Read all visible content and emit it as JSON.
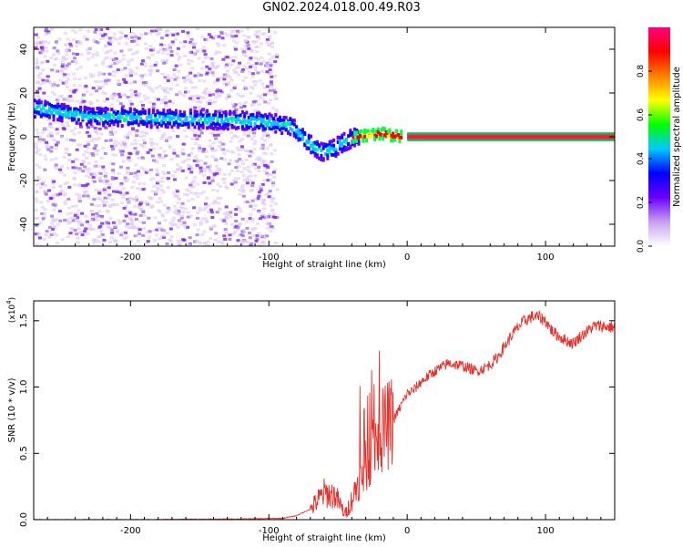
{
  "title": "GN02.2024.018.00.49.R03",
  "chart_data": [
    {
      "type": "heatmap",
      "xlabel": "Height of straight line (km)",
      "ylabel": "Frequency (Hz)",
      "xlim": [
        -270,
        150
      ],
      "ylim": [
        -50,
        50
      ],
      "xticks": [
        -200,
        -100,
        0,
        100
      ],
      "yticks": [
        -40,
        -20,
        0,
        20,
        40
      ],
      "ridge": {
        "x": [
          -270,
          -250,
          -230,
          -210,
          -190,
          -170,
          -150,
          -130,
          -110,
          -95,
          -85,
          -78,
          -70,
          -62,
          -55,
          -48,
          -42,
          -36,
          -30,
          -24,
          -18,
          -12,
          -5,
          0,
          150
        ],
        "y": [
          13,
          11,
          9,
          9,
          8.5,
          8,
          8,
          7.5,
          7,
          6,
          5,
          1,
          -4,
          -7,
          -6,
          -3,
          -1,
          0.5,
          0.5,
          1,
          1.5,
          0.5,
          0,
          0,
          0
        ]
      },
      "colorbar": {
        "label": "Normalized spectral amplitude",
        "range": [
          0,
          1
        ],
        "ticks": [
          "0.0",
          "0.2",
          "0.4",
          "0.6",
          "0.8"
        ],
        "tick_values": [
          0,
          0.2,
          0.4,
          0.6,
          0.8
        ],
        "colors": [
          "#ffffff",
          "#c8a0f0",
          "#6a00ff",
          "#0000ff",
          "#00c8ff",
          "#00ff00",
          "#ffff00",
          "#ff8000",
          "#ff0000",
          "#ff0080"
        ]
      }
    },
    {
      "type": "line",
      "xlabel": "Height of straight line (km)",
      "ylabel": "SNR (10 * v/v)",
      "y_scale_label": "(x10",
      "y_scale_exp": "4",
      "y_scale_close": ")",
      "xlim": [
        -270,
        150
      ],
      "ylim": [
        0,
        16500
      ],
      "xticks": [
        -200,
        -100,
        0,
        100
      ],
      "yticks": [
        0,
        5000,
        10000,
        15000
      ],
      "ytick_labels": [
        "0.0",
        "0.5",
        "1.0",
        "1.5"
      ],
      "color": "#e8302a",
      "series": [
        {
          "x": [
            -270,
            -200,
            -120,
            -90,
            -80,
            -70,
            -60,
            -52,
            -45,
            -40,
            -35,
            -30,
            -25,
            -20,
            -15,
            -10,
            -5,
            0,
            5,
            10,
            15,
            20,
            25,
            30,
            35,
            40,
            45,
            50,
            55,
            60,
            65,
            70,
            75,
            80,
            85,
            90,
            95,
            100,
            105,
            110,
            115,
            120,
            125,
            130,
            135,
            140,
            150
          ],
          "y": [
            0,
            0,
            50,
            100,
            300,
            800,
            2000,
            1800,
            400,
            1500,
            3000,
            4000,
            5500,
            6500,
            7000,
            7500,
            8500,
            9500,
            9800,
            10400,
            10800,
            11200,
            11500,
            11800,
            11700,
            11600,
            11400,
            11200,
            11400,
            11700,
            12200,
            13000,
            13800,
            14500,
            15000,
            15300,
            15300,
            15000,
            14200,
            13800,
            13500,
            13300,
            13800,
            14200,
            14600,
            14600,
            14500
          ]
        }
      ]
    }
  ]
}
